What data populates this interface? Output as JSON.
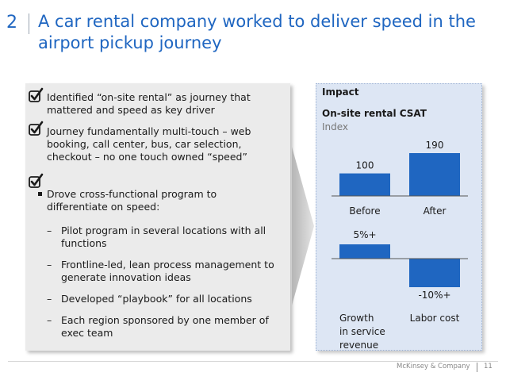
{
  "slide": {
    "number": "2",
    "title": "A car rental company worked to deliver speed in the airport pickup journey"
  },
  "left_panel": {
    "checked_items": [
      "Identified “on-site rental” as journey that mattered and speed as key driver",
      "Journey fundamentally multi-touch – web booking, call center, bus, car selection, checkout – no one touch owned “speed”"
    ],
    "bullet": "Drove cross-functional program to differentiate on speed:",
    "sub_items": [
      "Pilot program in several locations with all functions",
      "Frontline-led, lean process management to generate innovation ideas",
      "Developed “playbook” for all locations",
      "Each region sponsored by one member of exec team"
    ],
    "dash_symbol": "–"
  },
  "right_panel": {
    "heading": "Impact",
    "chart_title": "On-site rental CSAT",
    "chart_subtitle": "Index"
  },
  "chart_data": [
    {
      "type": "bar",
      "title": "On-site rental CSAT",
      "subtitle": "Index",
      "categories": [
        "Before",
        "After"
      ],
      "values": [
        100,
        190
      ],
      "value_labels": [
        "100",
        "190"
      ],
      "color": "#1f66c1"
    },
    {
      "type": "bar",
      "categories": [
        "Growth in service revenue",
        "Labor cost"
      ],
      "category_lines": [
        [
          "Growth",
          "in service",
          "revenue"
        ],
        [
          "Labor cost"
        ]
      ],
      "values": [
        5,
        -10
      ],
      "value_labels": [
        "5%+",
        "-10%+"
      ],
      "color": "#1f66c1"
    }
  ],
  "footer": {
    "brand": "McKinsey & Company",
    "page": "11"
  },
  "colors": {
    "accent": "#1f66c1",
    "left_panel_bg": "#ebebeb",
    "right_panel_bg": "#dde6f4"
  }
}
